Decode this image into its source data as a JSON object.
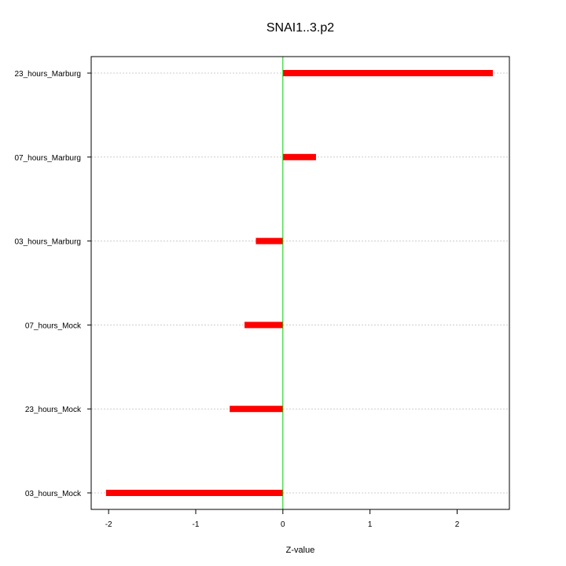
{
  "chart_data": {
    "type": "bar",
    "orientation": "horizontal",
    "title": "SNAI1..3.p2",
    "xlabel": "Z-value",
    "ylabel": "",
    "categories": [
      "23_hours_Marburg",
      "07_hours_Marburg",
      "03_hours_Marburg",
      "07_hours_Mock",
      "23_hours_Mock",
      "03_hours_Mock"
    ],
    "values": [
      2.41,
      0.38,
      -0.31,
      -0.44,
      -0.61,
      -2.03
    ],
    "xlim": [
      -2.2,
      2.6
    ],
    "xticks": [
      -2,
      -1,
      0,
      1,
      2
    ],
    "xtick_labels": [
      "-2",
      "-1",
      "0",
      "1",
      "2"
    ],
    "grid": "horizontal dotted",
    "reference_line": 0,
    "colors": {
      "bar": "#ff0000",
      "reference_line": "#00cc00",
      "grid": "#cccccc",
      "axis": "#000000"
    }
  }
}
